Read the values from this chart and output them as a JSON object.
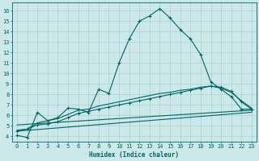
{
  "background_color": "#cce8e8",
  "grid_color": "#aad0d0",
  "line_color": "#006666",
  "xlabel": "Humidex (Indice chaleur)",
  "ylim": [
    3.5,
    16.8
  ],
  "xlim": [
    -0.5,
    23.5
  ],
  "yticks": [
    4,
    5,
    6,
    7,
    8,
    9,
    10,
    11,
    12,
    13,
    14,
    15,
    16
  ],
  "xticks": [
    0,
    1,
    2,
    3,
    4,
    5,
    6,
    7,
    8,
    9,
    10,
    11,
    12,
    13,
    14,
    15,
    16,
    17,
    18,
    19,
    20,
    21,
    22,
    23
  ],
  "line1_x": [
    0,
    1,
    2,
    3,
    4,
    5,
    6,
    7,
    8,
    9,
    10,
    11,
    12,
    13,
    14,
    15,
    16,
    17,
    18,
    19,
    20,
    21,
    22,
    23
  ],
  "line1_y": [
    4.1,
    3.9,
    6.3,
    5.5,
    5.8,
    6.7,
    6.6,
    6.3,
    8.5,
    8.1,
    11.0,
    13.3,
    15.0,
    15.5,
    16.2,
    15.3,
    14.2,
    13.3,
    11.8,
    9.2,
    8.5,
    7.8,
    6.6,
    6.6
  ],
  "line2_x": [
    0,
    1,
    2,
    3,
    4,
    5,
    6,
    7,
    8,
    9,
    10,
    11,
    12,
    13,
    14,
    15,
    16,
    17,
    18,
    19,
    20,
    21,
    22,
    23
  ],
  "line2_y": [
    4.5,
    4.7,
    5.1,
    5.2,
    5.4,
    5.8,
    6.2,
    6.4,
    6.6,
    6.8,
    7.0,
    7.2,
    7.4,
    7.6,
    7.8,
    8.0,
    8.2,
    8.4,
    8.6,
    8.8,
    8.7,
    8.3,
    7.3,
    6.6
  ],
  "line3_x": [
    0,
    1,
    2,
    3,
    4,
    5,
    6,
    7,
    8,
    9,
    10,
    11,
    12,
    13,
    14,
    15,
    16,
    17,
    18,
    19,
    20,
    21,
    22,
    23
  ],
  "line3_y": [
    4.6,
    4.7,
    5.3,
    5.5,
    5.7,
    6.1,
    6.5,
    6.6,
    6.9,
    7.1,
    7.3,
    7.5,
    7.7,
    7.9,
    8.1,
    8.2,
    8.4,
    8.5,
    8.7,
    8.8,
    8.6,
    8.2,
    7.4,
    6.7
  ],
  "line4_x": [
    0,
    23
  ],
  "line4_y": [
    5.1,
    6.5
  ],
  "line5_x": [
    0,
    23
  ],
  "line5_y": [
    4.5,
    6.3
  ]
}
